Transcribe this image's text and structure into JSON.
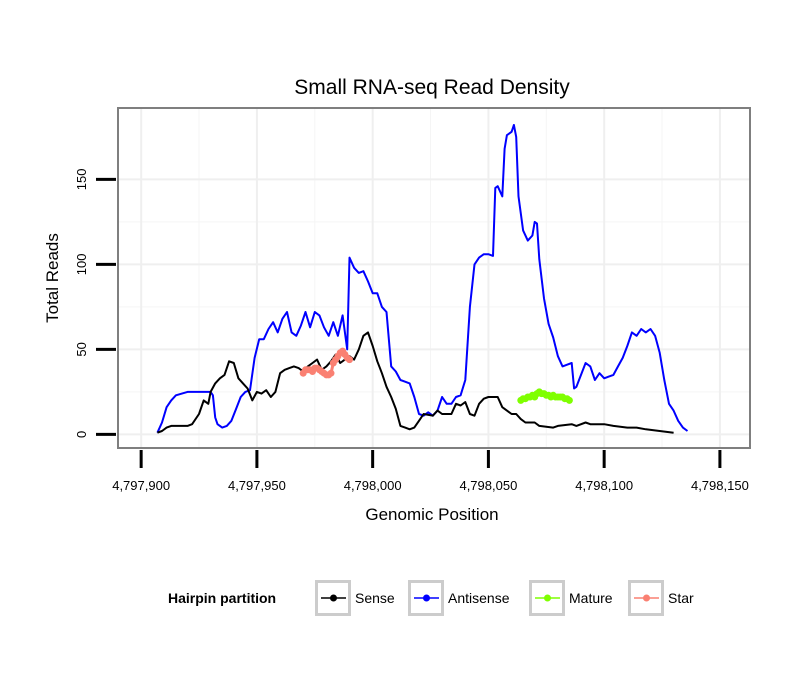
{
  "chart_data": {
    "type": "line",
    "title": "Small RNA-seq Read Density",
    "xlabel": "Genomic Position",
    "ylabel": "Total Reads",
    "xlim": [
      4797890,
      4798163
    ],
    "ylim": [
      -8,
      192
    ],
    "x_ticks": [
      4797900,
      4797950,
      4798000,
      4798050,
      4798100,
      4798150
    ],
    "x_tick_labels": [
      "4,797,900",
      "4,797,950",
      "4,798,000",
      "4,798,050",
      "4,798,100",
      "4,798,150"
    ],
    "y_ticks": [
      0,
      50,
      100,
      150
    ],
    "y_tick_labels": [
      "0",
      "50",
      "100",
      "150"
    ],
    "grid": true,
    "legend": {
      "title": "Hairpin partition",
      "position": "bottom",
      "entries": [
        {
          "name": "Sense",
          "color": "#000000"
        },
        {
          "name": "Antisense",
          "color": "#0000ff"
        },
        {
          "name": "Mature",
          "color": "#7fff00"
        },
        {
          "name": "Star",
          "color": "#fa8072"
        }
      ]
    },
    "series": [
      {
        "name": "Antisense",
        "color": "#0000ff",
        "style": "line",
        "points": [
          [
            4797907,
            1
          ],
          [
            4797909,
            7
          ],
          [
            4797911,
            16
          ],
          [
            4797913,
            20
          ],
          [
            4797915,
            23
          ],
          [
            4797920,
            25
          ],
          [
            4797925,
            25
          ],
          [
            4797930,
            25
          ],
          [
            4797931,
            23
          ],
          [
            4797932,
            10
          ],
          [
            4797933,
            6
          ],
          [
            4797935,
            4
          ],
          [
            4797937,
            5
          ],
          [
            4797939,
            8
          ],
          [
            4797941,
            15
          ],
          [
            4797943,
            22
          ],
          [
            4797945,
            25
          ],
          [
            4797947,
            26
          ],
          [
            4797949,
            45
          ],
          [
            4797951,
            56
          ],
          [
            4797953,
            56
          ],
          [
            4797955,
            62
          ],
          [
            4797957,
            66
          ],
          [
            4797959,
            60
          ],
          [
            4797961,
            68
          ],
          [
            4797963,
            72
          ],
          [
            4797965,
            60
          ],
          [
            4797967,
            58
          ],
          [
            4797969,
            64
          ],
          [
            4797971,
            72
          ],
          [
            4797973,
            63
          ],
          [
            4797975,
            72
          ],
          [
            4797977,
            70
          ],
          [
            4797979,
            63
          ],
          [
            4797981,
            58
          ],
          [
            4797983,
            66
          ],
          [
            4797985,
            58
          ],
          [
            4797987,
            70
          ],
          [
            4797989,
            50
          ],
          [
            4797990,
            104
          ],
          [
            4797992,
            98
          ],
          [
            4797994,
            95
          ],
          [
            4797996,
            96
          ],
          [
            4797998,
            90
          ],
          [
            4798000,
            83
          ],
          [
            4798002,
            83
          ],
          [
            4798004,
            75
          ],
          [
            4798006,
            72
          ],
          [
            4798008,
            40
          ],
          [
            4798010,
            37
          ],
          [
            4798012,
            32
          ],
          [
            4798014,
            31
          ],
          [
            4798016,
            30
          ],
          [
            4798018,
            22
          ],
          [
            4798020,
            12
          ],
          [
            4798022,
            11
          ],
          [
            4798024,
            13
          ],
          [
            4798026,
            11
          ],
          [
            4798028,
            14
          ],
          [
            4798030,
            22
          ],
          [
            4798032,
            18
          ],
          [
            4798034,
            18
          ],
          [
            4798036,
            22
          ],
          [
            4798038,
            23
          ],
          [
            4798040,
            32
          ],
          [
            4798042,
            75
          ],
          [
            4798044,
            100
          ],
          [
            4798046,
            104
          ],
          [
            4798048,
            106
          ],
          [
            4798050,
            106
          ],
          [
            4798052,
            105
          ],
          [
            4798053,
            145
          ],
          [
            4798054,
            146
          ],
          [
            4798056,
            140
          ],
          [
            4798057,
            168
          ],
          [
            4798058,
            176
          ],
          [
            4798060,
            178
          ],
          [
            4798061,
            182
          ],
          [
            4798062,
            175
          ],
          [
            4798063,
            140
          ],
          [
            4798065,
            120
          ],
          [
            4798067,
            114
          ],
          [
            4798069,
            117
          ],
          [
            4798070,
            125
          ],
          [
            4798071,
            124
          ],
          [
            4798072,
            103
          ],
          [
            4798074,
            80
          ],
          [
            4798076,
            65
          ],
          [
            4798078,
            57
          ],
          [
            4798080,
            46
          ],
          [
            4798082,
            40
          ],
          [
            4798084,
            41
          ],
          [
            4798086,
            42
          ],
          [
            4798087,
            27
          ],
          [
            4798088,
            28
          ],
          [
            4798090,
            35
          ],
          [
            4798092,
            42
          ],
          [
            4798094,
            40
          ],
          [
            4798096,
            32
          ],
          [
            4798098,
            36
          ],
          [
            4798100,
            33
          ],
          [
            4798102,
            34
          ],
          [
            4798104,
            35
          ],
          [
            4798106,
            40
          ],
          [
            4798108,
            45
          ],
          [
            4798110,
            52
          ],
          [
            4798112,
            60
          ],
          [
            4798114,
            58
          ],
          [
            4798116,
            62
          ],
          [
            4798118,
            60
          ],
          [
            4798120,
            62
          ],
          [
            4798122,
            58
          ],
          [
            4798124,
            48
          ],
          [
            4798126,
            32
          ],
          [
            4798128,
            18
          ],
          [
            4798130,
            14
          ],
          [
            4798132,
            8
          ],
          [
            4798134,
            4
          ],
          [
            4798136,
            2
          ]
        ]
      },
      {
        "name": "Sense",
        "color": "#000000",
        "style": "line",
        "points": [
          [
            4797907,
            1
          ],
          [
            4797909,
            2
          ],
          [
            4797911,
            4
          ],
          [
            4797913,
            5
          ],
          [
            4797920,
            5
          ],
          [
            4797922,
            6
          ],
          [
            4797925,
            12
          ],
          [
            4797927,
            20
          ],
          [
            4797929,
            18
          ],
          [
            4797930,
            25
          ],
          [
            4797932,
            30
          ],
          [
            4797934,
            33
          ],
          [
            4797936,
            35
          ],
          [
            4797938,
            43
          ],
          [
            4797940,
            42
          ],
          [
            4797942,
            33
          ],
          [
            4797944,
            30
          ],
          [
            4797946,
            27
          ],
          [
            4797948,
            20
          ],
          [
            4797950,
            25
          ],
          [
            4797952,
            24
          ],
          [
            4797954,
            26
          ],
          [
            4797956,
            22
          ],
          [
            4797958,
            25
          ],
          [
            4797960,
            36
          ],
          [
            4797962,
            38
          ],
          [
            4797964,
            39
          ],
          [
            4797966,
            40
          ],
          [
            4797968,
            39
          ],
          [
            4797970,
            37
          ],
          [
            4797972,
            40
          ],
          [
            4797974,
            42
          ],
          [
            4797976,
            44
          ],
          [
            4797978,
            38
          ],
          [
            4797980,
            40
          ],
          [
            4797982,
            43
          ],
          [
            4797984,
            47
          ],
          [
            4797986,
            42
          ],
          [
            4797988,
            44
          ],
          [
            4797990,
            46
          ],
          [
            4797992,
            44
          ],
          [
            4797994,
            50
          ],
          [
            4797996,
            58
          ],
          [
            4797998,
            60
          ],
          [
            4798000,
            52
          ],
          [
            4798002,
            43
          ],
          [
            4798004,
            36
          ],
          [
            4798006,
            28
          ],
          [
            4798008,
            22
          ],
          [
            4798010,
            15
          ],
          [
            4798012,
            5
          ],
          [
            4798014,
            4
          ],
          [
            4798016,
            3
          ],
          [
            4798018,
            4
          ],
          [
            4798020,
            8
          ],
          [
            4798022,
            12
          ],
          [
            4798026,
            11
          ],
          [
            4798028,
            14
          ],
          [
            4798030,
            12
          ],
          [
            4798034,
            12
          ],
          [
            4798036,
            18
          ],
          [
            4798038,
            17
          ],
          [
            4798040,
            19
          ],
          [
            4798042,
            12
          ],
          [
            4798044,
            11
          ],
          [
            4798046,
            18
          ],
          [
            4798048,
            21
          ],
          [
            4798050,
            22
          ],
          [
            4798054,
            22
          ],
          [
            4798056,
            16
          ],
          [
            4798058,
            14
          ],
          [
            4798060,
            12
          ],
          [
            4798062,
            12
          ],
          [
            4798064,
            9
          ],
          [
            4798066,
            7
          ],
          [
            4798070,
            7
          ],
          [
            4798072,
            5
          ],
          [
            4798078,
            4
          ],
          [
            4798080,
            5
          ],
          [
            4798086,
            6
          ],
          [
            4798088,
            5
          ],
          [
            4798092,
            7
          ],
          [
            4798094,
            6
          ],
          [
            4798100,
            6
          ],
          [
            4798104,
            5
          ],
          [
            4798110,
            4
          ],
          [
            4798114,
            4
          ],
          [
            4798118,
            3
          ],
          [
            4798124,
            2
          ],
          [
            4798130,
            1
          ]
        ]
      },
      {
        "name": "Star",
        "color": "#fa8072",
        "style": "marker",
        "points": [
          [
            4797970,
            36
          ],
          [
            4797971,
            38
          ],
          [
            4797972,
            38
          ],
          [
            4797973,
            38
          ],
          [
            4797974,
            37
          ],
          [
            4797975,
            39
          ],
          [
            4797976,
            39
          ],
          [
            4797977,
            38
          ],
          [
            4797978,
            37
          ],
          [
            4797979,
            36
          ],
          [
            4797980,
            35
          ],
          [
            4797981,
            35
          ],
          [
            4797982,
            36
          ],
          [
            4797983,
            42
          ],
          [
            4797984,
            44
          ],
          [
            4797985,
            46
          ],
          [
            4797986,
            48
          ],
          [
            4797987,
            49
          ],
          [
            4797988,
            47
          ],
          [
            4797989,
            45
          ],
          [
            4797990,
            44
          ]
        ]
      },
      {
        "name": "Mature",
        "color": "#7fff00",
        "style": "marker",
        "points": [
          [
            4798064,
            20
          ],
          [
            4798065,
            21
          ],
          [
            4798066,
            21
          ],
          [
            4798067,
            22
          ],
          [
            4798068,
            22
          ],
          [
            4798069,
            23
          ],
          [
            4798070,
            22
          ],
          [
            4798071,
            24
          ],
          [
            4798072,
            25
          ],
          [
            4798073,
            24
          ],
          [
            4798074,
            24
          ],
          [
            4798075,
            23
          ],
          [
            4798076,
            23
          ],
          [
            4798077,
            22
          ],
          [
            4798078,
            23
          ],
          [
            4798079,
            22
          ],
          [
            4798080,
            22
          ],
          [
            4798081,
            22
          ],
          [
            4798082,
            22
          ],
          [
            4798083,
            21
          ],
          [
            4798084,
            21
          ],
          [
            4798085,
            20
          ]
        ]
      }
    ]
  }
}
